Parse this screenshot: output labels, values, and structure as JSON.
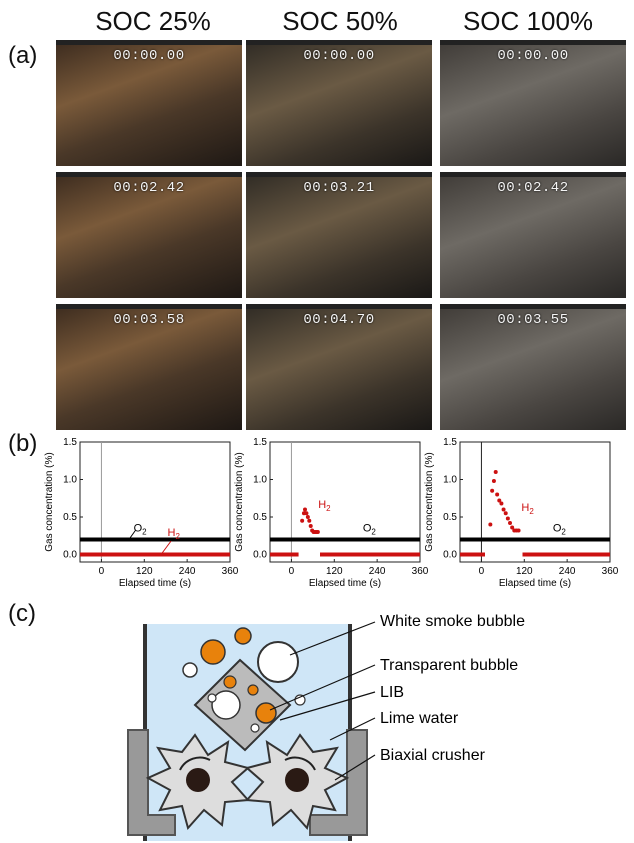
{
  "columns": [
    "SOC 25%",
    "SOC 50%",
    "SOC 100%"
  ],
  "panel_labels": {
    "a": "(a)",
    "b": "(b)",
    "c": "(c)"
  },
  "timestamps": [
    [
      "00:00.00",
      "00:00.00",
      "00:00.00"
    ],
    [
      "00:02.42",
      "00:03.21",
      "00:02.42"
    ],
    [
      "00:03.58",
      "00:04.70",
      "00:03.55"
    ]
  ],
  "colors": {
    "h2": "#cc1111",
    "o2": "#000000",
    "orange": "#e8820c",
    "water": "#cfe6f7"
  },
  "chart_data": [
    {
      "type": "scatter",
      "xlabel": "Elapsed time (s)",
      "ylabel": "Gas concentration (%)",
      "xlim": [
        -60,
        360
      ],
      "ylim": [
        -0.1,
        1.5
      ],
      "xticks": [
        "0",
        "120",
        "240",
        "360"
      ],
      "yticks": [
        "0.0",
        "0.5",
        "1.0",
        "1.5"
      ],
      "xtick_values": [
        0,
        120,
        240,
        360
      ],
      "ytick_values": [
        0.0,
        0.5,
        1.0,
        1.5
      ],
      "labels": {
        "o2": "O",
        "h2": "H",
        "sub": "2"
      },
      "series": [
        {
          "name": "O2",
          "color": "#000000",
          "segments": [
            [
              -60,
              360,
              0.2
            ]
          ],
          "points": []
        },
        {
          "name": "H2",
          "color": "#cc1111",
          "segments": [
            [
              -60,
              360,
              0.0
            ]
          ],
          "points": []
        }
      ]
    },
    {
      "type": "scatter",
      "xlabel": "Elapsed time (s)",
      "ylabel": "Gas concentration (%)",
      "xlim": [
        -60,
        360
      ],
      "ylim": [
        -0.1,
        1.5
      ],
      "xticks": [
        "0",
        "120",
        "240",
        "360"
      ],
      "yticks": [
        "0.0",
        "0.5",
        "1.0",
        "1.5"
      ],
      "xtick_values": [
        0,
        120,
        240,
        360
      ],
      "ytick_values": [
        0.0,
        0.5,
        1.0,
        1.5
      ],
      "labels": {
        "o2": "O",
        "h2": "H",
        "sub": "2"
      },
      "series": [
        {
          "name": "O2",
          "color": "#000000",
          "segments": [
            [
              -60,
              360,
              0.2
            ]
          ],
          "points": []
        },
        {
          "name": "H2",
          "color": "#cc1111",
          "segments": [
            [
              -60,
              20,
              0.0
            ],
            [
              80,
              360,
              0.0
            ]
          ],
          "points": [
            [
              30,
              0.45
            ],
            [
              35,
              0.55
            ],
            [
              38,
              0.6
            ],
            [
              42,
              0.55
            ],
            [
              46,
              0.5
            ],
            [
              50,
              0.45
            ],
            [
              54,
              0.38
            ],
            [
              58,
              0.32
            ],
            [
              62,
              0.3
            ],
            [
              66,
              0.3
            ],
            [
              70,
              0.3
            ],
            [
              74,
              0.3
            ]
          ]
        }
      ]
    },
    {
      "type": "scatter",
      "xlabel": "Elapsed time (s)",
      "ylabel": "Gas concentration (%)",
      "xlim": [
        -60,
        360
      ],
      "ylim": [
        -0.1,
        1.5
      ],
      "xticks": [
        "0",
        "120",
        "240",
        "360"
      ],
      "yticks": [
        "0.0",
        "0.5",
        "1.0",
        "1.5"
      ],
      "xtick_values": [
        0,
        120,
        240,
        360
      ],
      "ytick_values": [
        0.0,
        0.5,
        1.0,
        1.5
      ],
      "labels": {
        "o2": "O",
        "h2": "H",
        "sub": "2"
      },
      "series": [
        {
          "name": "O2",
          "color": "#000000",
          "segments": [
            [
              -60,
              360,
              0.2
            ]
          ],
          "points": []
        },
        {
          "name": "H2",
          "color": "#cc1111",
          "segments": [
            [
              -60,
              10,
              0.0
            ],
            [
              115,
              360,
              0.0
            ]
          ],
          "points": [
            [
              25,
              0.4
            ],
            [
              30,
              0.85
            ],
            [
              35,
              0.98
            ],
            [
              40,
              1.1
            ],
            [
              44,
              0.8
            ],
            [
              50,
              0.72
            ],
            [
              56,
              0.68
            ],
            [
              62,
              0.6
            ],
            [
              68,
              0.55
            ],
            [
              74,
              0.48
            ],
            [
              80,
              0.42
            ],
            [
              86,
              0.36
            ],
            [
              92,
              0.32
            ],
            [
              98,
              0.32
            ],
            [
              104,
              0.32
            ]
          ]
        }
      ]
    }
  ],
  "diagram_labels": [
    "White smoke bubble",
    "Transparent bubble",
    "LIB",
    "Lime water",
    "Biaxial crusher"
  ]
}
